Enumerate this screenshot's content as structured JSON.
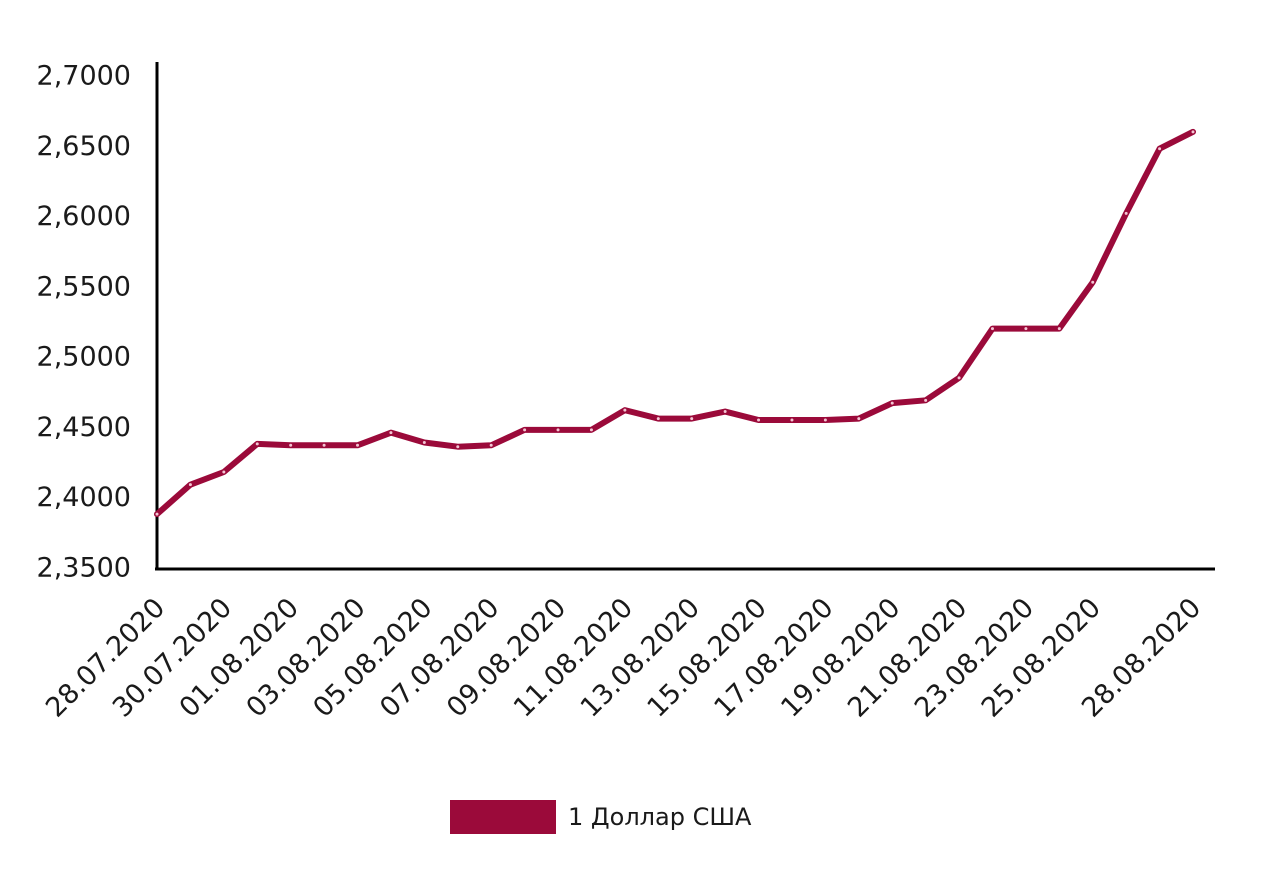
{
  "chart_data": {
    "type": "line",
    "categories": [
      "28.07.2020",
      null,
      "30.07.2020",
      null,
      "01.08.2020",
      null,
      "03.08.2020",
      null,
      "05.08.2020",
      null,
      "07.08.2020",
      null,
      "09.08.2020",
      null,
      "11.08.2020",
      null,
      "13.08.2020",
      null,
      "15.08.2020",
      null,
      "17.08.2020",
      null,
      "19.08.2020",
      null,
      "21.08.2020",
      null,
      "23.08.2020",
      null,
      "25.08.2020",
      null,
      null,
      "28.08.2020"
    ],
    "series": [
      {
        "name": "1 Доллар США",
        "color": "#9b0a3a",
        "values": [
          2.389,
          2.41,
          2.419,
          2.439,
          2.438,
          2.438,
          2.438,
          2.447,
          2.44,
          2.437,
          2.438,
          2.449,
          2.449,
          2.449,
          2.463,
          2.457,
          2.457,
          2.462,
          2.456,
          2.456,
          2.456,
          2.457,
          2.468,
          2.47,
          2.486,
          2.521,
          2.521,
          2.521,
          2.554,
          2.603,
          2.649,
          2.661
        ]
      }
    ],
    "ylim": [
      2.35,
      2.7
    ],
    "yticks": [
      {
        "value": 2.35,
        "label": "2,3500"
      },
      {
        "value": 2.4,
        "label": "2,4000"
      },
      {
        "value": 2.45,
        "label": "2,4500"
      },
      {
        "value": 2.5,
        "label": "2,5000"
      },
      {
        "value": 2.55,
        "label": "2,5500"
      },
      {
        "value": 2.6,
        "label": "2,6000"
      },
      {
        "value": 2.65,
        "label": "2,6500"
      },
      {
        "value": 2.7,
        "label": "2,7000"
      }
    ],
    "grid": false,
    "legend": "bottom"
  }
}
